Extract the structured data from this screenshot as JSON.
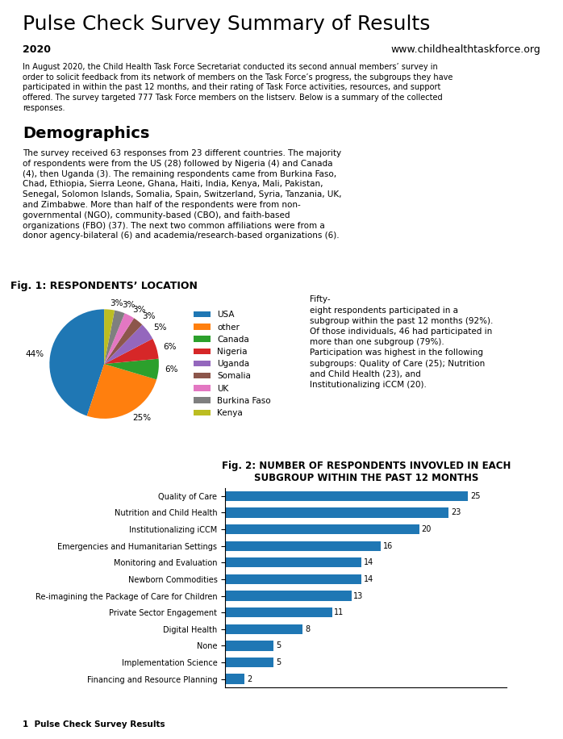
{
  "chart_data": [
    {
      "type": "pie",
      "title": "Fig. 1: RESPONDENTS’ LOCATION",
      "categories": [
        "USA",
        "other",
        "Canada",
        "Nigeria",
        "Uganda",
        "Somalia",
        "UK",
        "Burkina Faso",
        "Kenya"
      ],
      "values": [
        44,
        25,
        6,
        6,
        5,
        3,
        3,
        3,
        3
      ],
      "value_labels": [
        "44%",
        "25%",
        "6%",
        "6%",
        "5%",
        "3%",
        "3%",
        "3%",
        "3%"
      ],
      "data_labels": true,
      "legend": "center left",
      "annotations": [
        "Pulse Check Survey Summary of Results",
        "2020",
        "www.childhealthtaskforce.org",
        "In August 2020, the Child Health Task Force Secretariat conducted its second annual members’ survey in\norder to solicit feedback from its network of members on the Task Force’s progress, the subgroups they have\nparticipated in within the past 12 months, and their rating of Task Force activities, resources, and support\noffered. The survey targeted 777 Task Force members on the listserv. Below is a summary of the collected\nresponses.",
        "Demographics",
        "The survey received 63 responses from 23 different countries. The majority\nof respondents were from the US (28) followed by Nigeria (4) and Canada\n(4), then Uganda (3). The remaining respondents came from Burkina Faso,\nChad, Ethiopia, Sierra Leone, Ghana, Haiti, India, Kenya, Mali, Pakistan,\nSenegal, Solomon Islands, Somalia, Spain, Switzerland, Syria, Tanzania, UK,\nand Zimbabwe. More than half of the respondents were from non-\ngovernmental (NGO), community-based (CBO), and faith-based\norganizations (FBO) (37). The next two common affiliations were from a\ndonor agency-bilateral (6) and academia/research-based organizations (6)."
      ]
    },
    {
      "type": "bar",
      "orientation": "horizontal",
      "title": "Fig. 2: NUMBER OF RESPONDENTS INVOVLED IN EACH\nSUBGROUP WITHIN THE PAST 12 MONTHS",
      "categories": [
        "Quality of Care",
        "Nutrition and Child Health",
        "Institutionalizing iCCM",
        "Emergencies and Humanitarian Settings",
        "Monitoring and Evaluation",
        "Newborn Commodities",
        "Re-imagining the Package of Care for Children",
        "Private Sector Engagement",
        "Digital Health",
        "None",
        "Implementation Science",
        "Financing and Resource Planning"
      ],
      "values": [
        25,
        23,
        20,
        16,
        14,
        14,
        13,
        11,
        8,
        5,
        5,
        2
      ],
      "xlim": [
        0,
        29
      ],
      "grid": false,
      "data_labels": true,
      "tick_labels": "y",
      "annotations": [
        "Fifty-\neight respondents participated in a\nsubgroup within the past 12 months (92%).\nOf those individuals, 46 had participated in\nmore than one subgroup (79%).\nParticipation was highest in the following\nsubgroups: Quality of Care (25); Nutrition\nand Child Health (23), and\nInstitutionalizing iCCM (20).",
        "1  Pulse Check Survey Results"
      ]
    }
  ]
}
